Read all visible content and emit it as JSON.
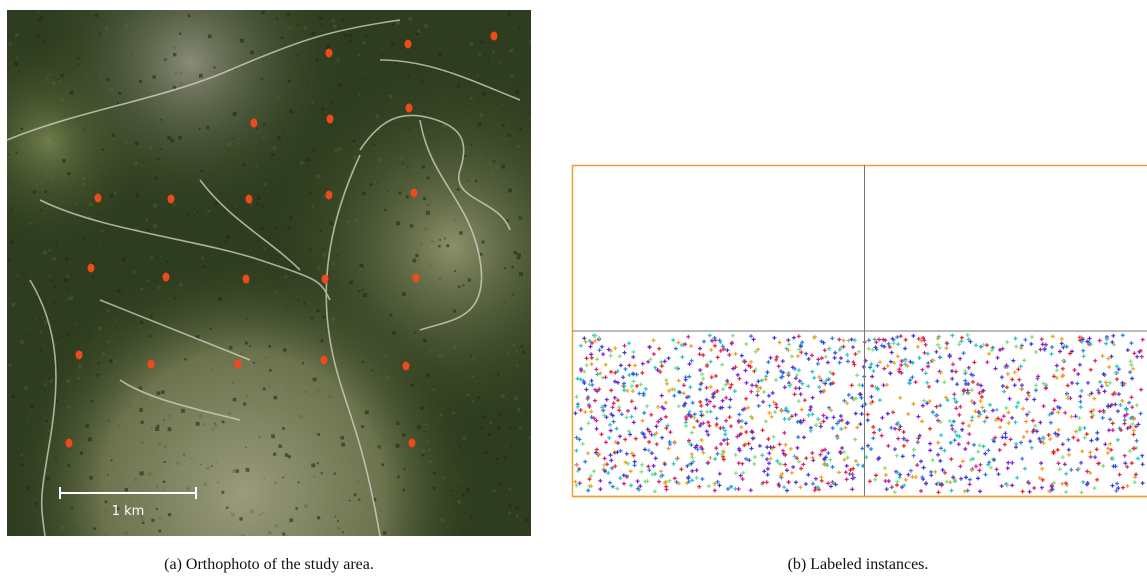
{
  "figure": {
    "panel_a": {
      "scale_bar_label": "1 km",
      "caption": "(a) Orthophoto of the study area."
    },
    "panel_b": {
      "caption": "(b) Labeled instances."
    }
  }
}
